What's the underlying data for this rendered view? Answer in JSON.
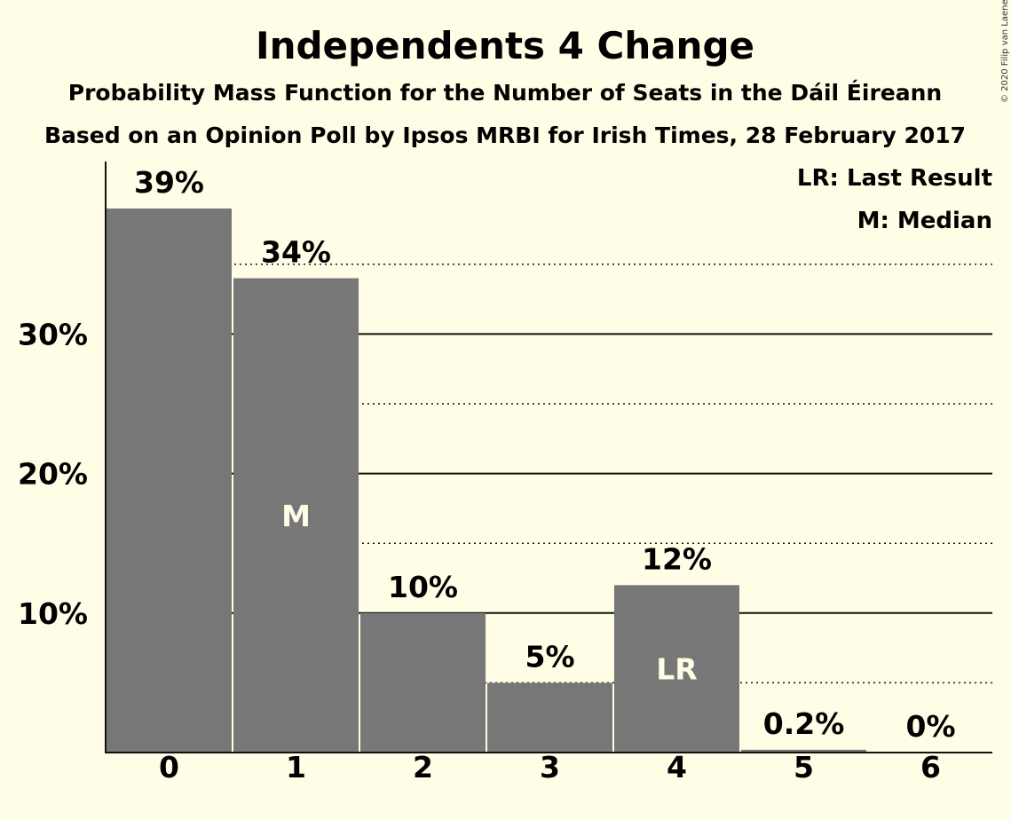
{
  "chart_data": {
    "type": "bar",
    "title": "Independents 4 Change",
    "subtitle": "Probability Mass Function for the Number of Seats in the Dáil Éireann",
    "subtitle2": "Based on an Opinion Poll by Ipsos MRBI for Irish Times, 28 February 2017",
    "copyright": "© 2020 Filip van Laenen",
    "categories": [
      "0",
      "1",
      "2",
      "3",
      "4",
      "5",
      "6"
    ],
    "values": [
      39,
      34,
      10,
      5,
      12,
      0.2,
      0
    ],
    "value_labels": [
      "39%",
      "34%",
      "10%",
      "5%",
      "12%",
      "0.2%",
      "0%"
    ],
    "bar_color": "#777777",
    "yticks": [
      {
        "value": 10,
        "label": "10%"
      },
      {
        "value": 20,
        "label": "20%"
      },
      {
        "value": 30,
        "label": "30%"
      }
    ],
    "minor_gridlines": [
      5,
      15,
      25,
      35
    ],
    "ylim": [
      0,
      42
    ],
    "markers": [
      {
        "category": "1",
        "label": "M"
      },
      {
        "category": "4",
        "label": "LR"
      }
    ],
    "legend": {
      "placement": "top-right",
      "entries": [
        "LR: Last Result",
        "M: Median"
      ]
    }
  }
}
